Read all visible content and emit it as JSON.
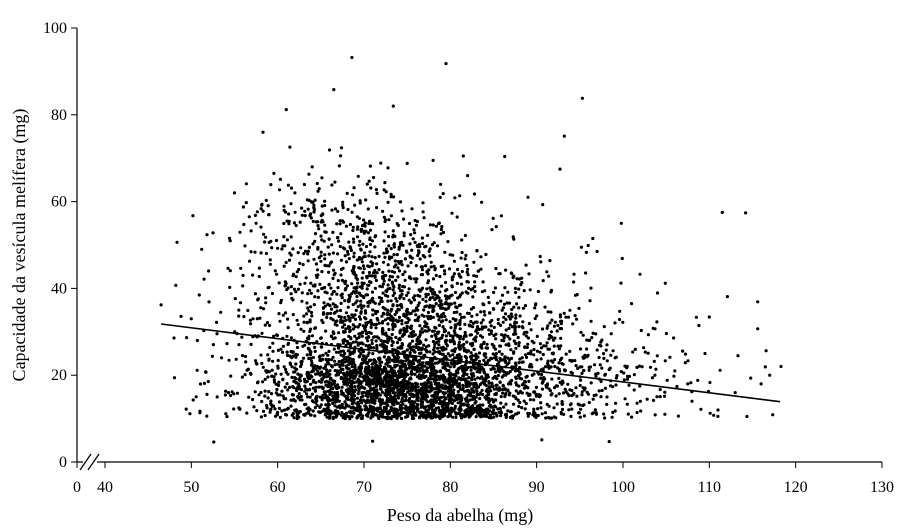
{
  "chart_data": {
    "type": "scatter",
    "title": "",
    "xlabel": "Peso da abelha (mg)",
    "ylabel": "Capacidade da vesícula melífera (mg)",
    "x_tick_labels": [
      "0",
      "40",
      "50",
      "60",
      "70",
      "80",
      "90",
      "100",
      "110",
      "120",
      "130"
    ],
    "y_tick_labels": [
      "0",
      "20",
      "40",
      "60",
      "80",
      "100"
    ],
    "xlim": [
      35,
      130
    ],
    "ylim": [
      0,
      100
    ],
    "axis_break": "x between 0 and 40",
    "grid": false,
    "legend": "none",
    "marker_color": "#000000",
    "approx_point_count": 4500,
    "trendline": {
      "x": [
        46.5,
        118.2
      ],
      "y": [
        31.8,
        13.9
      ]
    },
    "points": [
      [
        68.6,
        93.2
      ],
      [
        79.5,
        91.8
      ],
      [
        95.3,
        83.8
      ],
      [
        66.5,
        85.8
      ],
      [
        73.4,
        82.0
      ],
      [
        61.0,
        81.2
      ],
      [
        58.3,
        76.0
      ],
      [
        93.2,
        75.1
      ],
      [
        81.5,
        70.5
      ],
      [
        86.3,
        70.4
      ],
      [
        67.4,
        72.4
      ],
      [
        66.0,
        71.9
      ],
      [
        92.7,
        67.5
      ],
      [
        111.5,
        57.5
      ],
      [
        114.2,
        57.4
      ],
      [
        99.8,
        55.0
      ],
      [
        90.7,
        59.3
      ],
      [
        96.5,
        51.5
      ],
      [
        104.9,
        41.2
      ],
      [
        115.6,
        30.7
      ],
      [
        110.0,
        33.4
      ],
      [
        112.1,
        38.1
      ],
      [
        46.5,
        36.2
      ],
      [
        48.2,
        40.7
      ],
      [
        51.2,
        49.0
      ],
      [
        52.0,
        44.0
      ],
      [
        55.0,
        62.0
      ],
      [
        54.5,
        51.0
      ],
      [
        56.0,
        43.0
      ],
      [
        50.0,
        33.0
      ],
      [
        50.7,
        28.0
      ],
      [
        52.6,
        4.6
      ],
      [
        71.0,
        4.8
      ],
      [
        90.6,
        5.1
      ],
      [
        98.4,
        4.7
      ],
      [
        100.5,
        22.0
      ],
      [
        103.5,
        30.8
      ],
      [
        106.0,
        21.0
      ],
      [
        108.0,
        14.0
      ],
      [
        113.0,
        16.0
      ],
      [
        116.0,
        18.0
      ],
      [
        118.3,
        22.0
      ],
      [
        117.0,
        20.0
      ],
      [
        111.0,
        10.5
      ],
      [
        109.5,
        25.0
      ],
      [
        107.5,
        18.0
      ],
      [
        101.0,
        36.5
      ],
      [
        97.0,
        48.5
      ],
      [
        89.0,
        61.0
      ],
      [
        82.0,
        66.0
      ],
      [
        78.0,
        69.5
      ],
      [
        75.0,
        68.8
      ],
      [
        64.0,
        68.0
      ],
      [
        62.0,
        62.0
      ],
      [
        59.0,
        57.0
      ],
      [
        57.5,
        55.0
      ],
      [
        55.5,
        35.0
      ],
      [
        53.5,
        24.0
      ],
      [
        53.0,
        15.0
      ],
      [
        51.0,
        11.7
      ]
    ],
    "density_clusters": [
      {
        "mx": 74,
        "sx": 7.5,
        "my": 17,
        "sy": 5,
        "n": 1700
      },
      {
        "mx": 76,
        "sx": 10,
        "my": 27,
        "sy": 10,
        "n": 1500
      },
      {
        "mx": 72,
        "sx": 7,
        "my": 42,
        "sy": 9,
        "n": 500
      },
      {
        "mx": 84,
        "sx": 13,
        "my": 19,
        "sy": 7,
        "n": 600
      },
      {
        "mx": 66,
        "sx": 6,
        "my": 55,
        "sy": 6,
        "n": 200
      }
    ]
  }
}
